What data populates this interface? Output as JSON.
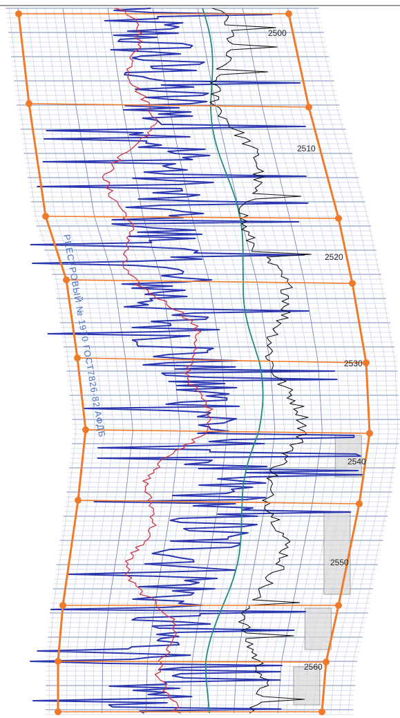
{
  "depth_labels": [
    "2500",
    "2510",
    "2520",
    "2530",
    "2540",
    "2550",
    "2560"
  ],
  "stamp": "РЕЕСТРОВЫЙ № 1970 ГОСТ7826-82 АФДБ"
}
